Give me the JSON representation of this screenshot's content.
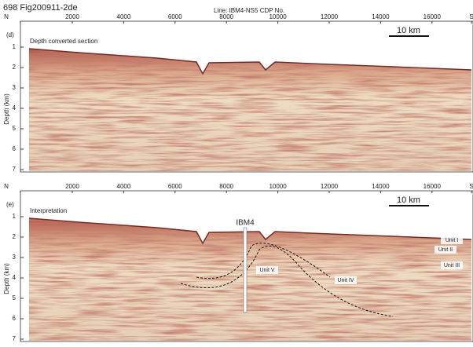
{
  "header": {
    "figure_id": "698  Fig200911-2de",
    "line_label": "Line: IBM4-NS5   CDP No."
  },
  "panels": [
    {
      "label": "(d)",
      "title": "Depth converted section",
      "x_axis": {
        "ticks": [
          "N",
          2000,
          4000,
          6000,
          8000,
          10000,
          12000,
          14000,
          16000,
          "S"
        ]
      },
      "y_axis": {
        "label": "Depth (km)",
        "ticks": [
          1,
          2,
          3,
          4,
          5,
          6,
          7
        ]
      },
      "scale_bar": "10 km",
      "annotations": []
    },
    {
      "label": "(e)",
      "title": "Interpretation",
      "x_axis": {
        "ticks": [
          "N",
          2000,
          4000,
          6000,
          8000,
          10000,
          12000,
          14000,
          16000,
          "S"
        ]
      },
      "y_axis": {
        "label": "Depth (km)",
        "ticks": [
          1,
          2,
          3,
          4,
          5,
          6,
          7
        ]
      },
      "scale_bar": "10 km",
      "annotations": [
        "IBM4",
        "Unit I",
        "Unit II",
        "Unit III",
        "Unit V",
        "Unit IV"
      ]
    }
  ]
}
